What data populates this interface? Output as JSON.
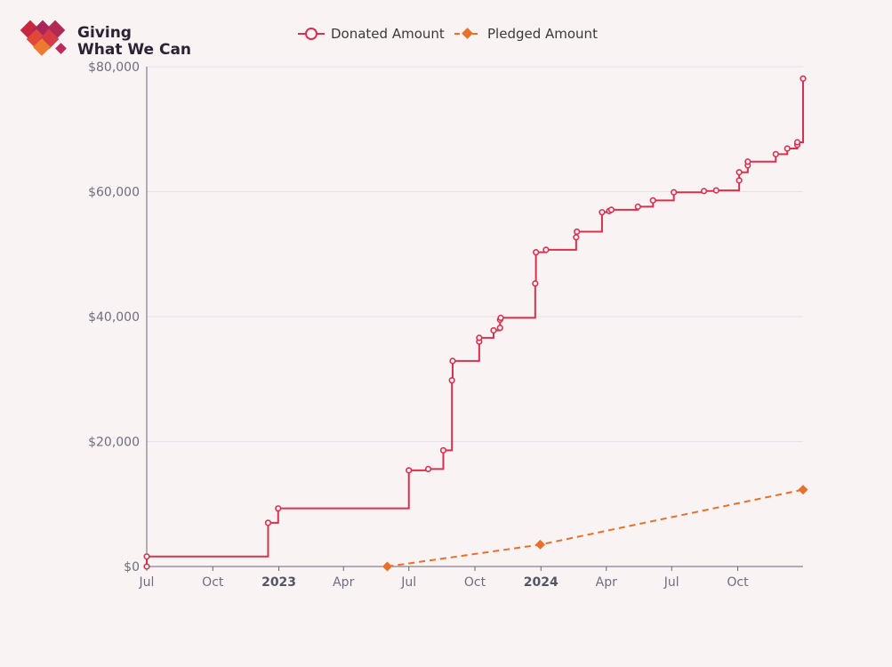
{
  "logo": {
    "line1": "Giving",
    "line2": "What We Can"
  },
  "colors": {
    "donated": "#d6324f",
    "pledged": "#e8702a",
    "grid": "#e3e0ee",
    "axis": "#666677",
    "background": "#f9f3f4"
  },
  "chart_data": {
    "type": "line",
    "title": "",
    "xlabel": "",
    "ylabel": "",
    "ylim": [
      0,
      80000
    ],
    "xlim": [
      "2022-07-01",
      "2024-12-31"
    ],
    "grid": true,
    "legend_position": "top-center",
    "y_ticks": [
      {
        "value": 0,
        "label": "$0"
      },
      {
        "value": 20000,
        "label": "$20,000"
      },
      {
        "value": 40000,
        "label": "$40,000"
      },
      {
        "value": 60000,
        "label": "$60,000"
      },
      {
        "value": 80000,
        "label": "$80,000"
      }
    ],
    "x_ticks": [
      {
        "date": "2022-07-01",
        "label": "Jul",
        "bold": false
      },
      {
        "date": "2022-10-01",
        "label": "Oct",
        "bold": false
      },
      {
        "date": "2023-01-01",
        "label": "2023",
        "bold": true
      },
      {
        "date": "2023-04-01",
        "label": "Apr",
        "bold": false
      },
      {
        "date": "2023-07-01",
        "label": "Jul",
        "bold": false
      },
      {
        "date": "2023-10-01",
        "label": "Oct",
        "bold": false
      },
      {
        "date": "2024-01-01",
        "label": "2024",
        "bold": true
      },
      {
        "date": "2024-04-01",
        "label": "Apr",
        "bold": false
      },
      {
        "date": "2024-07-01",
        "label": "Jul",
        "bold": false
      },
      {
        "date": "2024-10-01",
        "label": "Oct",
        "bold": false
      }
    ],
    "series": [
      {
        "name": "Donated Amount",
        "style": "step",
        "marker": "circle",
        "color": "#d6324f",
        "points": [
          [
            "2022-07-01",
            0
          ],
          [
            "2022-07-01",
            1600
          ],
          [
            "2022-12-17",
            7000
          ],
          [
            "2022-12-31",
            9300
          ],
          [
            "2023-07-01",
            15400
          ],
          [
            "2023-07-28",
            15600
          ],
          [
            "2023-08-18",
            18600
          ],
          [
            "2023-08-30",
            29800
          ],
          [
            "2023-08-31",
            32900
          ],
          [
            "2023-10-07",
            36000
          ],
          [
            "2023-10-07",
            36600
          ],
          [
            "2023-10-27",
            37800
          ],
          [
            "2023-11-05",
            38200
          ],
          [
            "2023-11-05",
            39500
          ],
          [
            "2023-11-06",
            39800
          ],
          [
            "2023-12-24",
            45300
          ],
          [
            "2023-12-25",
            50300
          ],
          [
            "2024-01-08",
            50700
          ],
          [
            "2024-02-19",
            52700
          ],
          [
            "2024-02-20",
            53600
          ],
          [
            "2024-03-26",
            56700
          ],
          [
            "2024-04-05",
            56900
          ],
          [
            "2024-04-08",
            57100
          ],
          [
            "2024-05-15",
            57600
          ],
          [
            "2024-06-05",
            58600
          ],
          [
            "2024-07-04",
            59900
          ],
          [
            "2024-08-15",
            60100
          ],
          [
            "2024-09-01",
            60200
          ],
          [
            "2024-10-03",
            61800
          ],
          [
            "2024-10-03",
            63100
          ],
          [
            "2024-10-15",
            64200
          ],
          [
            "2024-10-15",
            64800
          ],
          [
            "2024-11-23",
            66000
          ],
          [
            "2024-12-09",
            66900
          ],
          [
            "2024-12-23",
            67500
          ],
          [
            "2024-12-23",
            67900
          ],
          [
            "2024-12-31",
            78100
          ]
        ]
      },
      {
        "name": "Pledged Amount",
        "style": "dashed",
        "marker": "diamond",
        "color": "#e8702a",
        "points": [
          [
            "2023-06-01",
            0
          ],
          [
            "2023-12-31",
            3500
          ],
          [
            "2024-12-31",
            12300
          ]
        ]
      }
    ]
  }
}
